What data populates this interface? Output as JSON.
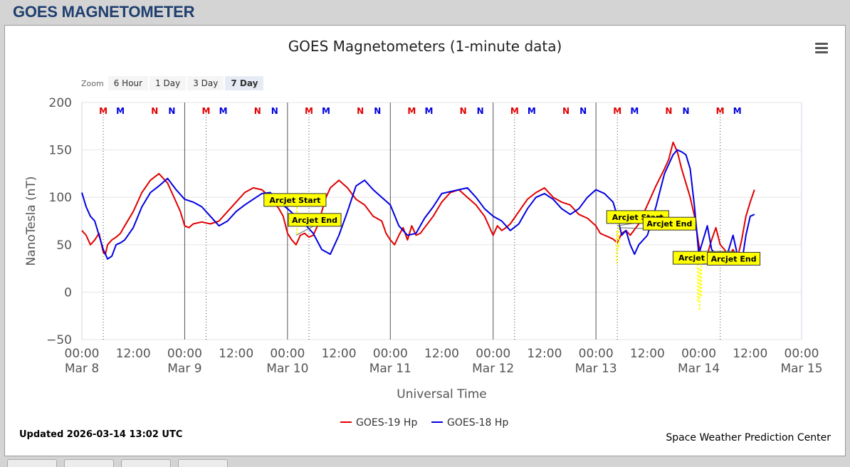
{
  "page": {
    "title": "GOES MAGNETOMETER"
  },
  "chart_header": {
    "title": "GOES Magnetometers (1-minute data)",
    "menu_icon": "hamburger-menu-icon"
  },
  "zoom": {
    "label": "Zoom",
    "buttons": [
      "6 Hour",
      "1 Day",
      "3 Day",
      "7 Day"
    ],
    "active": "7 Day"
  },
  "footer": {
    "updated": "Updated 2026-03-14 13:02 UTC",
    "credit": "Space Weather Prediction Center"
  },
  "chart_data": {
    "type": "line",
    "title": "GOES Magnetometers (1-minute data)",
    "xlabel": "Universal Time",
    "ylabel": "NanoTesla (nT)",
    "ylim": [
      -50,
      200
    ],
    "yticks": [
      -50,
      0,
      50,
      100,
      150,
      200
    ],
    "xlim_hours": [
      0,
      168
    ],
    "xticks": [
      {
        "h": 0,
        "time": "00:00",
        "date": "Mar 8"
      },
      {
        "h": 12,
        "time": "12:00",
        "date": ""
      },
      {
        "h": 24,
        "time": "00:00",
        "date": "Mar 9"
      },
      {
        "h": 36,
        "time": "12:00",
        "date": ""
      },
      {
        "h": 48,
        "time": "00:00",
        "date": "Mar 10"
      },
      {
        "h": 60,
        "time": "12:00",
        "date": ""
      },
      {
        "h": 72,
        "time": "00:00",
        "date": "Mar 11"
      },
      {
        "h": 84,
        "time": "12:00",
        "date": ""
      },
      {
        "h": 96,
        "time": "00:00",
        "date": "Mar 12"
      },
      {
        "h": 108,
        "time": "12:00",
        "date": ""
      },
      {
        "h": 120,
        "time": "00:00",
        "date": "Mar 13"
      },
      {
        "h": 132,
        "time": "12:00",
        "date": ""
      },
      {
        "h": 144,
        "time": "00:00",
        "date": "Mar 14"
      },
      {
        "h": 156,
        "time": "12:00",
        "date": ""
      },
      {
        "h": 168,
        "time": "00:00",
        "date": "Mar 15"
      }
    ],
    "grid": true,
    "legend_position": "bottom-center",
    "markers": [
      {
        "h": 5,
        "label": "M",
        "color": "#e00000"
      },
      {
        "h": 9,
        "label": "M",
        "color": "#0000e0"
      },
      {
        "h": 17,
        "label": "N",
        "color": "#e00000"
      },
      {
        "h": 21,
        "label": "N",
        "color": "#0000e0"
      },
      {
        "h": 29,
        "label": "M",
        "color": "#e00000"
      },
      {
        "h": 33,
        "label": "M",
        "color": "#0000e0"
      },
      {
        "h": 41,
        "label": "N",
        "color": "#e00000"
      },
      {
        "h": 45,
        "label": "N",
        "color": "#0000e0"
      },
      {
        "h": 53,
        "label": "M",
        "color": "#e00000"
      },
      {
        "h": 57,
        "label": "M",
        "color": "#0000e0"
      },
      {
        "h": 65,
        "label": "N",
        "color": "#e00000"
      },
      {
        "h": 69,
        "label": "N",
        "color": "#0000e0"
      },
      {
        "h": 77,
        "label": "M",
        "color": "#e00000"
      },
      {
        "h": 81,
        "label": "M",
        "color": "#0000e0"
      },
      {
        "h": 89,
        "label": "N",
        "color": "#e00000"
      },
      {
        "h": 93,
        "label": "N",
        "color": "#0000e0"
      },
      {
        "h": 101,
        "label": "M",
        "color": "#e00000"
      },
      {
        "h": 105,
        "label": "M",
        "color": "#0000e0"
      },
      {
        "h": 113,
        "label": "N",
        "color": "#e00000"
      },
      {
        "h": 117,
        "label": "N",
        "color": "#0000e0"
      },
      {
        "h": 125,
        "label": "M",
        "color": "#e00000"
      },
      {
        "h": 129,
        "label": "M",
        "color": "#0000e0"
      },
      {
        "h": 137,
        "label": "N",
        "color": "#e00000"
      },
      {
        "h": 141,
        "label": "N",
        "color": "#0000e0"
      },
      {
        "h": 149,
        "label": "M",
        "color": "#e00000"
      },
      {
        "h": 153,
        "label": "M",
        "color": "#0000e0"
      }
    ],
    "midnight_lines_h": [
      24,
      48,
      72,
      96,
      120
    ],
    "dotted_lines_h": [
      5,
      29,
      53,
      101,
      125,
      149
    ],
    "series": [
      {
        "name": "GOES-19 Hp",
        "color": "#e00000",
        "x": [
          0,
          1,
          2,
          3,
          4,
          5,
          5.5,
          6,
          7,
          8,
          9,
          10,
          12,
          14,
          16,
          18,
          20,
          21,
          22,
          23,
          24,
          25,
          26,
          28,
          30,
          32,
          34,
          36,
          38,
          40,
          42,
          44,
          46,
          47,
          48,
          49,
          50,
          51,
          52,
          53,
          54,
          55,
          56,
          57,
          58,
          60,
          62,
          64,
          66,
          68,
          70,
          71,
          72,
          73,
          74,
          75,
          76,
          77,
          78,
          79,
          80,
          82,
          84,
          86,
          88,
          90,
          92,
          94,
          96,
          97,
          98,
          99,
          100,
          102,
          104,
          106,
          108,
          110,
          112,
          114,
          116,
          118,
          120,
          121,
          122,
          123,
          124,
          125,
          126,
          127,
          128,
          130,
          132,
          134,
          136,
          137,
          138,
          139,
          140,
          141,
          142,
          143,
          144,
          145,
          146,
          147,
          148,
          149,
          150,
          151,
          152,
          153,
          154,
          155,
          156,
          157
        ],
        "y": [
          65,
          60,
          50,
          55,
          62,
          42,
          40,
          50,
          55,
          58,
          62,
          70,
          85,
          105,
          118,
          125,
          115,
          105,
          95,
          85,
          70,
          68,
          72,
          74,
          72,
          75,
          85,
          95,
          105,
          110,
          108,
          100,
          88,
          80,
          62,
          55,
          50,
          60,
          62,
          58,
          60,
          70,
          85,
          100,
          110,
          118,
          110,
          98,
          92,
          80,
          75,
          62,
          55,
          50,
          60,
          68,
          55,
          70,
          60,
          62,
          68,
          80,
          95,
          105,
          108,
          100,
          92,
          80,
          60,
          70,
          65,
          68,
          72,
          85,
          98,
          105,
          110,
          100,
          95,
          92,
          82,
          78,
          70,
          62,
          60,
          58,
          56,
          52,
          62,
          65,
          60,
          72,
          92,
          112,
          130,
          140,
          158,
          148,
          130,
          115,
          100,
          80,
          50,
          30,
          40,
          55,
          68,
          50,
          45,
          38,
          45,
          35,
          55,
          80,
          95,
          108
        ]
      },
      {
        "name": "GOES-18 Hp",
        "color": "#0000e0",
        "x": [
          0,
          1,
          2,
          3,
          4,
          5,
          6,
          7,
          8,
          9,
          10,
          12,
          14,
          16,
          18,
          20,
          22,
          24,
          26,
          28,
          30,
          32,
          34,
          36,
          38,
          40,
          42,
          44,
          46,
          48,
          50,
          52,
          54,
          56,
          58,
          60,
          62,
          64,
          66,
          68,
          70,
          72,
          74,
          76,
          78,
          80,
          82,
          84,
          86,
          88,
          90,
          92,
          94,
          96,
          98,
          100,
          102,
          104,
          106,
          108,
          110,
          112,
          114,
          116,
          118,
          120,
          122,
          124,
          125,
          126,
          127,
          128,
          129,
          130,
          132,
          134,
          136,
          138,
          139,
          140,
          141,
          142,
          143,
          144,
          145,
          146,
          147,
          148,
          149,
          150,
          151,
          152,
          153,
          154,
          155,
          156,
          157
        ],
        "y": [
          105,
          90,
          80,
          75,
          60,
          45,
          35,
          38,
          50,
          52,
          55,
          68,
          90,
          105,
          112,
          120,
          108,
          98,
          95,
          90,
          80,
          70,
          75,
          85,
          92,
          98,
          104,
          105,
          95,
          88,
          80,
          72,
          62,
          45,
          40,
          60,
          85,
          112,
          118,
          108,
          100,
          92,
          70,
          60,
          62,
          78,
          90,
          104,
          106,
          108,
          110,
          100,
          88,
          80,
          75,
          65,
          72,
          88,
          100,
          104,
          98,
          88,
          82,
          88,
          100,
          108,
          104,
          95,
          80,
          60,
          65,
          50,
          40,
          50,
          60,
          90,
          125,
          145,
          150,
          148,
          145,
          130,
          90,
          40,
          55,
          70,
          45,
          40,
          35,
          30,
          45,
          60,
          40,
          30,
          60,
          80,
          82
        ]
      }
    ],
    "annotations": [
      {
        "label": "Arcjet Start",
        "h": 42.5,
        "y": 104,
        "marker_h": 46,
        "marker_y": 92
      },
      {
        "label": "Arcjet End",
        "h": 48.2,
        "y": 83,
        "marker_h": 50,
        "marker_y": 60
      },
      {
        "label": "Arcjet Start",
        "h": 122.5,
        "y": 86,
        "marker_h": 125,
        "marker_y": 70
      },
      {
        "label": "Arcjet End",
        "h": 131,
        "y": 79,
        "marker_h": 125.5,
        "marker_y": 68
      },
      {
        "label": "Arcjet Start",
        "h": 138,
        "y": 43,
        "marker_h": 144,
        "marker_y": 30
      },
      {
        "label": "Arcjet End",
        "h": 146,
        "y": 42,
        "marker_h": 145,
        "marker_y": 30
      }
    ],
    "yellow_spikes": [
      {
        "h": 50.2,
        "y": [
          90,
          60
        ]
      },
      {
        "h": 124.8,
        "y": [
          65,
          30
        ]
      },
      {
        "h": 125.3,
        "y": [
          72,
          45
        ]
      },
      {
        "h": 143.8,
        "y": [
          30,
          -10
        ]
      },
      {
        "h": 144.2,
        "y": [
          25,
          -20
        ]
      },
      {
        "h": 144.6,
        "y": [
          28,
          -5
        ]
      }
    ]
  }
}
